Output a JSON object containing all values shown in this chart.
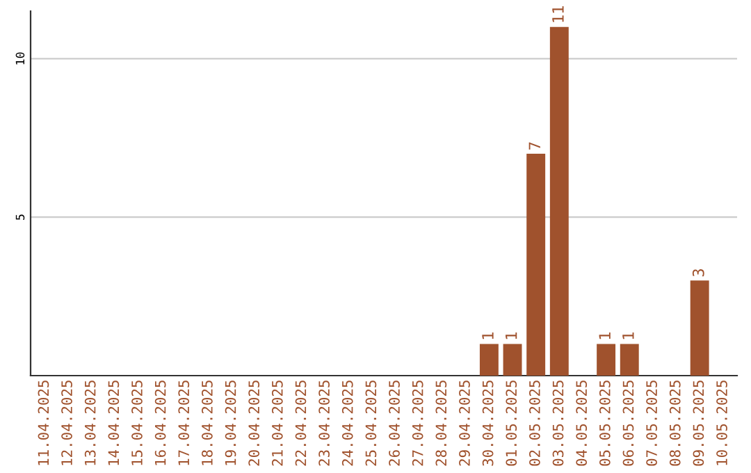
{
  "chart_data": {
    "type": "bar",
    "categories": [
      "11.04.2025",
      "12.04.2025",
      "13.04.2025",
      "14.04.2025",
      "15.04.2025",
      "16.04.2025",
      "17.04.2025",
      "18.04.2025",
      "19.04.2025",
      "20.04.2025",
      "21.04.2025",
      "22.04.2025",
      "23.04.2025",
      "24.04.2025",
      "25.04.2025",
      "26.04.2025",
      "27.04.2025",
      "28.04.2025",
      "29.04.2025",
      "30.04.2025",
      "01.05.2025",
      "02.05.2025",
      "03.05.2025",
      "04.05.2025",
      "05.05.2025",
      "06.05.2025",
      "07.05.2025",
      "08.05.2025",
      "09.05.2025",
      "10.05.2025"
    ],
    "values": [
      0,
      0,
      0,
      0,
      0,
      0,
      0,
      0,
      0,
      0,
      0,
      0,
      0,
      0,
      0,
      0,
      0,
      0,
      0,
      1,
      1,
      7,
      11,
      0,
      1,
      1,
      0,
      0,
      3,
      0
    ],
    "value_labels": [
      null,
      null,
      null,
      null,
      null,
      null,
      null,
      null,
      null,
      null,
      null,
      null,
      null,
      null,
      null,
      null,
      null,
      null,
      null,
      "1",
      "1",
      "7",
      "11",
      null,
      "1",
      "1",
      null,
      null,
      "3",
      null
    ],
    "color": "#a0522d",
    "ylim": [
      0,
      11.5
    ],
    "yticks": [
      5,
      10
    ],
    "grid": "y"
  }
}
